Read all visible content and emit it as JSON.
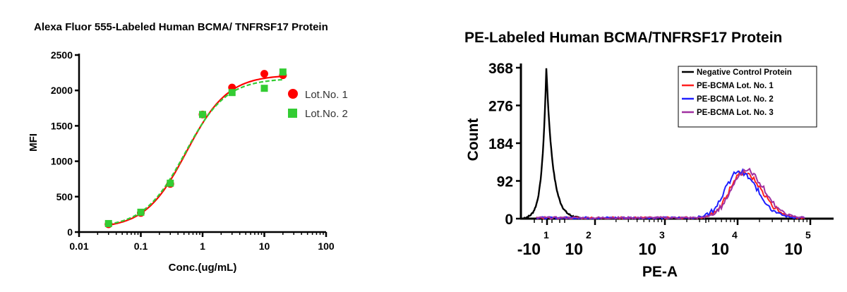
{
  "chart_data": [
    {
      "type": "scatter",
      "title": "Alexa Fluor 555-Labeled Human BCMA/ TNFRSF17 Protein",
      "xlabel": "Conc.(ug/mL)",
      "ylabel": "MFI",
      "xscale": "log",
      "xlim": [
        0.01,
        100
      ],
      "ylim": [
        0,
        2500
      ],
      "xticks": [
        0.01,
        0.1,
        1,
        10,
        100
      ],
      "xtick_labels": [
        "0.01",
        "0.1",
        "1",
        "10",
        "100"
      ],
      "yticks": [
        0,
        500,
        1000,
        1500,
        2000,
        2500
      ],
      "ytick_labels": [
        "0",
        "500",
        "1000",
        "1500",
        "2000",
        "2500"
      ],
      "grid": false,
      "legend_position": "right",
      "series": [
        {
          "name": "Lot.No. 1",
          "color": "#ff0000",
          "marker": "circle",
          "x": [
            0.03,
            0.1,
            0.3,
            1,
            3,
            10,
            20
          ],
          "y": [
            110,
            270,
            680,
            1660,
            2040,
            2235,
            2215
          ],
          "fit": {
            "bottom": 50,
            "top": 2220,
            "ec50": 0.55,
            "hill": 1.3
          }
        },
        {
          "name": "Lot.No. 2",
          "color": "#33cc33",
          "marker": "square",
          "x": [
            0.03,
            0.1,
            0.3,
            1,
            3,
            10,
            20
          ],
          "y": [
            120,
            280,
            690,
            1660,
            1970,
            2030,
            2260
          ],
          "fit": {
            "bottom": 60,
            "top": 2170,
            "ec50": 0.52,
            "hill": 1.3
          }
        }
      ]
    },
    {
      "type": "line",
      "title": "PE-Labeled Human BCMA/TNFRSF17 Protein",
      "xlabel": "PE-A",
      "ylabel": "Count",
      "xscale": "biexponential",
      "ylim": [
        0,
        368
      ],
      "yticks": [
        0,
        92,
        184,
        276,
        368
      ],
      "ytick_labels": [
        "0",
        "92",
        "184",
        "276",
        "368"
      ],
      "xtick_labels": [
        {
          "base": "-10",
          "exp": "1"
        },
        {
          "base": "10",
          "exp": "2"
        },
        {
          "base": "10",
          "exp": "3"
        },
        {
          "base": "10",
          "exp": "4"
        },
        {
          "base": "10",
          "exp": "5"
        }
      ],
      "grid": false,
      "legend_position": "top-right",
      "series": [
        {
          "name": "Negative Control Protein",
          "color": "#000000",
          "peak_position": "-10^1",
          "peak_count": 368
        },
        {
          "name": "PE-BCMA Lot. No. 1",
          "color": "#ff2020",
          "peak_position": "10^4",
          "peak_count": 110
        },
        {
          "name": "PE-BCMA Lot. No. 2",
          "color": "#2020ff",
          "peak_position": "10^4",
          "peak_count": 112
        },
        {
          "name": "PE-BCMA Lot. No. 3",
          "color": "#a030a0",
          "peak_position": "10^4",
          "peak_count": 116
        }
      ]
    }
  ]
}
